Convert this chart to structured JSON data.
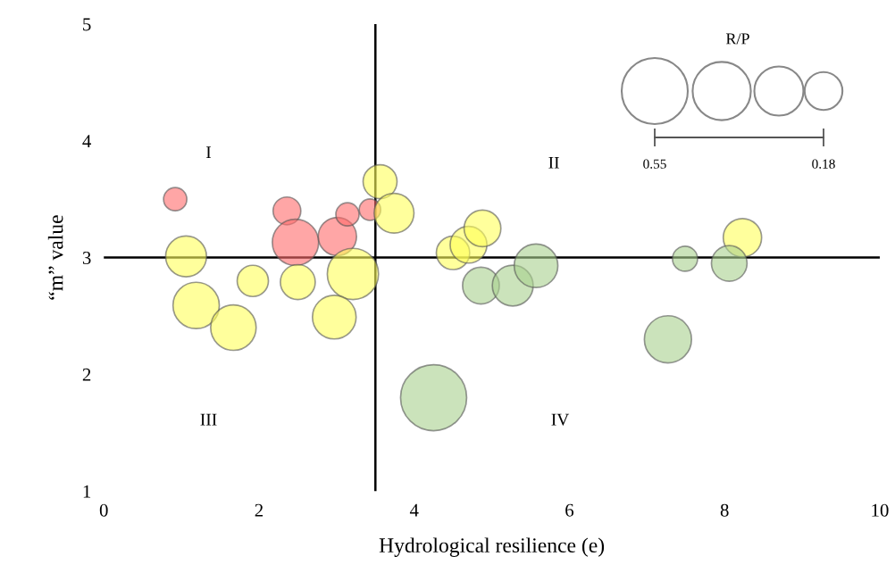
{
  "chart_data": {
    "type": "bubble",
    "xlabel": "Hydrological resilience (e)",
    "ylabel": "“m” value",
    "legend_title": "R/P",
    "xlim": [
      0,
      10
    ],
    "ylim": [
      1,
      5
    ],
    "xticks": [
      0,
      2,
      4,
      6,
      8,
      10
    ],
    "yticks": [
      1,
      2,
      3,
      4,
      5
    ],
    "grid": false,
    "size_legend": [
      0.55,
      0.18
    ],
    "series": [
      {
        "color": "#ff6b6b",
        "x": [
          0.92,
          2.36,
          2.47,
          3.01,
          3.14,
          3.43
        ],
        "values": [
          3.5,
          3.4,
          3.13,
          3.18,
          3.37,
          3.41
        ],
        "sizes": [
          0.068,
          0.097,
          0.27,
          0.185,
          0.068,
          0.058
        ]
      },
      {
        "color": "#ffff5a",
        "x": [
          3.56,
          3.74,
          1.06,
          1.92,
          2.5,
          3.21,
          1.19,
          1.67,
          2.97,
          4.5,
          4.7,
          4.88,
          8.23
        ],
        "values": [
          3.65,
          3.38,
          3.01,
          2.8,
          2.79,
          2.86,
          2.59,
          2.4,
          2.49,
          3.04,
          3.11,
          3.25,
          3.17
        ],
        "sizes": [
          0.145,
          0.2,
          0.21,
          0.123,
          0.153,
          0.33,
          0.27,
          0.26,
          0.24,
          0.14,
          0.17,
          0.17,
          0.185
        ]
      },
      {
        "color": "#a9d18e",
        "x": [
          4.86,
          5.27,
          5.57,
          7.49,
          8.06,
          7.27,
          4.25
        ],
        "values": [
          2.76,
          2.76,
          2.93,
          2.99,
          2.95,
          2.3,
          1.8
        ],
        "sizes": [
          0.17,
          0.21,
          0.24,
          0.079,
          0.16,
          0.28,
          0.55
        ]
      }
    ],
    "ref_lines": [
      {
        "axis": "x",
        "value": 3.5,
        "color": "#000000"
      },
      {
        "axis": "y",
        "value": 3,
        "color": "#000000"
      }
    ],
    "annotations": [
      "I",
      "II",
      "III",
      "IV"
    ]
  }
}
